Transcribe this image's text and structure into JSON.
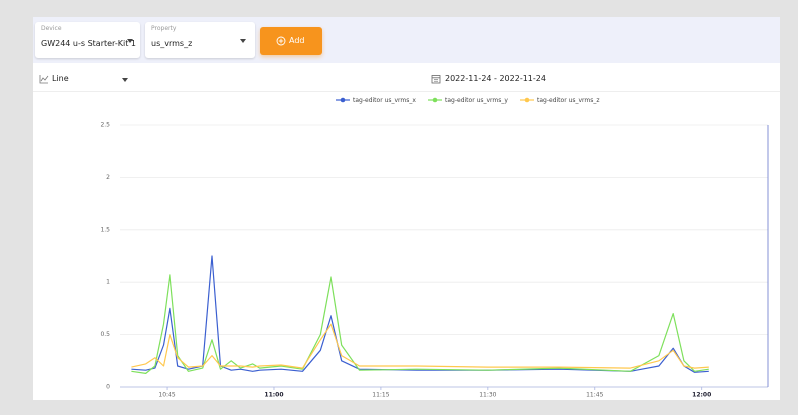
{
  "toolbar": {
    "device": {
      "label": "Device",
      "value": "GW244 u-s Starter-Kit 1"
    },
    "property": {
      "label": "Property",
      "value": "us_vrms_z"
    },
    "add_button": "Add"
  },
  "controls": {
    "chart_type": "Line",
    "date_range": "2022-11-24 - 2022-11-24"
  },
  "chart_data": {
    "type": "line",
    "x": [
      640,
      642,
      643.3,
      644.5,
      645.4,
      646.5,
      648,
      650,
      651.3,
      652.5,
      654,
      655.3,
      657,
      658,
      661,
      664,
      666.5,
      668,
      669.5,
      672,
      680,
      690,
      700,
      710,
      714,
      716,
      717.5,
      719,
      721
    ],
    "series": [
      {
        "name": "tag-editor us_vrms_x",
        "color": "#3b5fd0",
        "values": [
          0.17,
          0.16,
          0.18,
          0.4,
          0.75,
          0.2,
          0.17,
          0.2,
          1.25,
          0.2,
          0.16,
          0.17,
          0.15,
          0.16,
          0.17,
          0.15,
          0.35,
          0.68,
          0.25,
          0.17,
          0.16,
          0.16,
          0.17,
          0.15,
          0.2,
          0.37,
          0.2,
          0.14,
          0.15
        ]
      },
      {
        "name": "tag-editor us_vrms_y",
        "color": "#7ee05c",
        "values": [
          0.15,
          0.13,
          0.2,
          0.6,
          1.07,
          0.3,
          0.15,
          0.18,
          0.45,
          0.17,
          0.25,
          0.18,
          0.22,
          0.18,
          0.2,
          0.17,
          0.5,
          1.05,
          0.4,
          0.16,
          0.17,
          0.16,
          0.18,
          0.15,
          0.3,
          0.7,
          0.25,
          0.15,
          0.17
        ]
      },
      {
        "name": "tag-editor us_vrms_z",
        "color": "#ffc84e",
        "values": [
          0.19,
          0.22,
          0.28,
          0.2,
          0.5,
          0.28,
          0.19,
          0.2,
          0.3,
          0.2,
          0.2,
          0.2,
          0.19,
          0.2,
          0.21,
          0.18,
          0.45,
          0.6,
          0.3,
          0.2,
          0.2,
          0.19,
          0.19,
          0.18,
          0.25,
          0.35,
          0.2,
          0.18,
          0.19
        ]
      }
    ],
    "xlim": [
      638.4,
      729.3
    ],
    "xticks": [
      {
        "value": 645,
        "label": "10:45"
      },
      {
        "value": 660,
        "label": "11:00"
      },
      {
        "value": 675,
        "label": "11:15"
      },
      {
        "value": 690,
        "label": "11:30"
      },
      {
        "value": 705,
        "label": "11:45"
      },
      {
        "value": 720,
        "label": "12:00"
      }
    ],
    "ylim": [
      0,
      2.5
    ],
    "yticks": [
      0,
      0.5,
      1,
      1.5,
      2,
      2.5
    ],
    "grid": true,
    "legend": "top"
  }
}
